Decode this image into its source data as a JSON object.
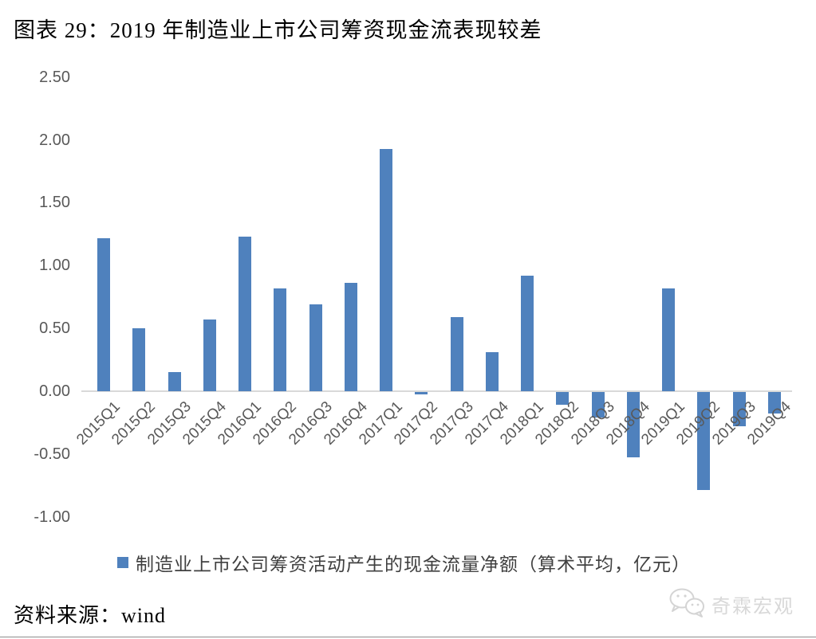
{
  "page": {
    "title": "图表 29：2019 年制造业上市公司筹资现金流表现较差",
    "source": "资料来源：wind",
    "watermark": "奇霖宏观"
  },
  "legend": {
    "label": "制造业上市公司筹资活动产生的现金流量净额（算术平均，亿元）"
  },
  "colors": {
    "bar": "#4f81bd",
    "axis_text": "#595959",
    "axis_line": "#d9d9d9",
    "title_text": "#000000",
    "watermark_text": "#d8d8d8"
  },
  "icons": {
    "watermark_icon": "wechat-chat-bubbles-icon"
  },
  "chart_data": {
    "type": "bar",
    "title": "图表 29：2019 年制造业上市公司筹资现金流表现较差",
    "series_name": "制造业上市公司筹资活动产生的现金流量净额（算术平均，亿元）",
    "categories": [
      "2015Q1",
      "2015Q2",
      "2015Q3",
      "2015Q4",
      "2016Q1",
      "2016Q2",
      "2016Q3",
      "2016Q4",
      "2017Q1",
      "2017Q2",
      "2017Q3",
      "2017Q4",
      "2018Q1",
      "2018Q2",
      "2018Q3",
      "2018Q4",
      "2019Q1",
      "2019Q2",
      "2019Q3",
      "2019Q4"
    ],
    "values": [
      1.22,
      0.5,
      0.15,
      0.57,
      1.23,
      0.82,
      0.69,
      0.86,
      1.93,
      -0.02,
      0.59,
      0.31,
      0.92,
      -0.1,
      -0.2,
      -0.52,
      0.82,
      -0.78,
      -0.27,
      -0.17
    ],
    "xlabel": "",
    "ylabel": "",
    "unit": "亿元",
    "ylim": [
      -1.0,
      2.5
    ],
    "ytick_labels": [
      "2.50",
      "2.00",
      "1.50",
      "1.00",
      "0.50",
      "0.00",
      "-0.50",
      "-1.00"
    ],
    "ytick_values": [
      2.5,
      2.0,
      1.5,
      1.0,
      0.5,
      0.0,
      -0.5,
      -1.0
    ],
    "grid": false,
    "legend_position": "bottom",
    "bar_color": "#4f81bd"
  }
}
